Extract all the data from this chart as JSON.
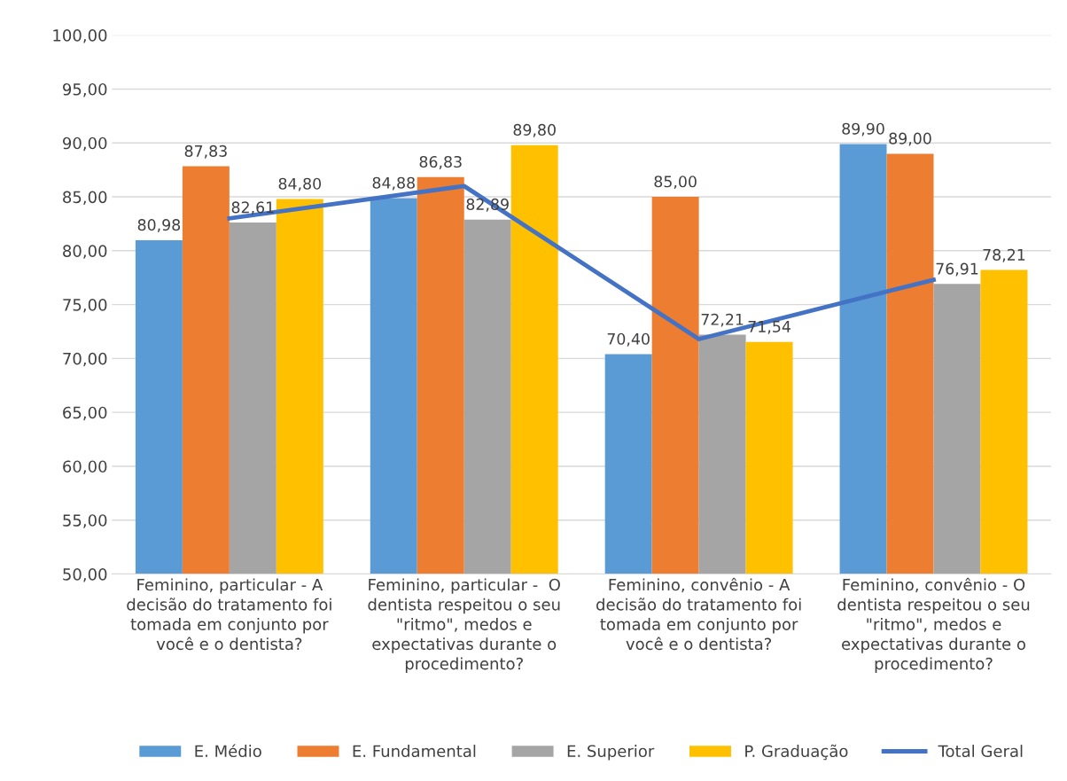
{
  "chart_data": {
    "type": "bar",
    "categories": [
      "Feminino, particular - A\ndecisão do tratamento foi\ntomada em conjunto por\nvocê e o dentista?",
      "Feminino, particular -  O\ndentista respeitou o seu\n\"ritmo\", medos e\nexpectativas durante o\nprocedimento?",
      "Feminino, convênio - A\ndecisão do tratamento foi\ntomada em conjunto por\nvocê e o dentista?",
      "Feminino, convênio - O\ndentista respeitou o seu\n\"ritmo\", medos e\nexpectativas durante o\nprocedimento?"
    ],
    "series": [
      {
        "name": "E. Médio",
        "color": "#5b9bd5",
        "values": [
          80.98,
          84.88,
          70.4,
          89.9
        ],
        "value_labels": [
          "80,98",
          "84,88",
          "70,40",
          "89,90"
        ]
      },
      {
        "name": "E. Fundamental",
        "color": "#ed7d31",
        "values": [
          87.83,
          86.83,
          85.0,
          89.0
        ],
        "value_labels": [
          "87,83",
          "86,83",
          "85,00",
          "89,00"
        ]
      },
      {
        "name": "E. Superior",
        "color": "#a5a5a5",
        "values": [
          82.61,
          82.89,
          72.21,
          76.91
        ],
        "value_labels": [
          "82,61",
          "82,89",
          "72,21",
          "76,91"
        ]
      },
      {
        "name": "P. Graduação",
        "color": "#ffc000",
        "values": [
          84.8,
          89.8,
          71.54,
          78.21
        ],
        "value_labels": [
          "84,80",
          "89,80",
          "71,54",
          "78,21"
        ]
      },
      {
        "name": "Total Geral",
        "type": "line",
        "color": "#4472c4",
        "values": [
          83.0,
          86.0,
          71.8,
          77.3
        ]
      }
    ],
    "ylim": [
      50,
      100
    ],
    "yticks": [
      {
        "value": 50,
        "label": "50,00"
      },
      {
        "value": 55,
        "label": "55,00"
      },
      {
        "value": 60,
        "label": "60,00"
      },
      {
        "value": 65,
        "label": "65,00"
      },
      {
        "value": 70,
        "label": "70,00"
      },
      {
        "value": 75,
        "label": "75,00"
      },
      {
        "value": 80,
        "label": "80,00"
      },
      {
        "value": 85,
        "label": "85,00"
      },
      {
        "value": 90,
        "label": "90,00"
      },
      {
        "value": 95,
        "label": "95,00"
      },
      {
        "value": 100,
        "label": "100,00"
      }
    ],
    "grid": "y",
    "legend": "bottom",
    "marker": "none",
    "line_style": "solid"
  }
}
